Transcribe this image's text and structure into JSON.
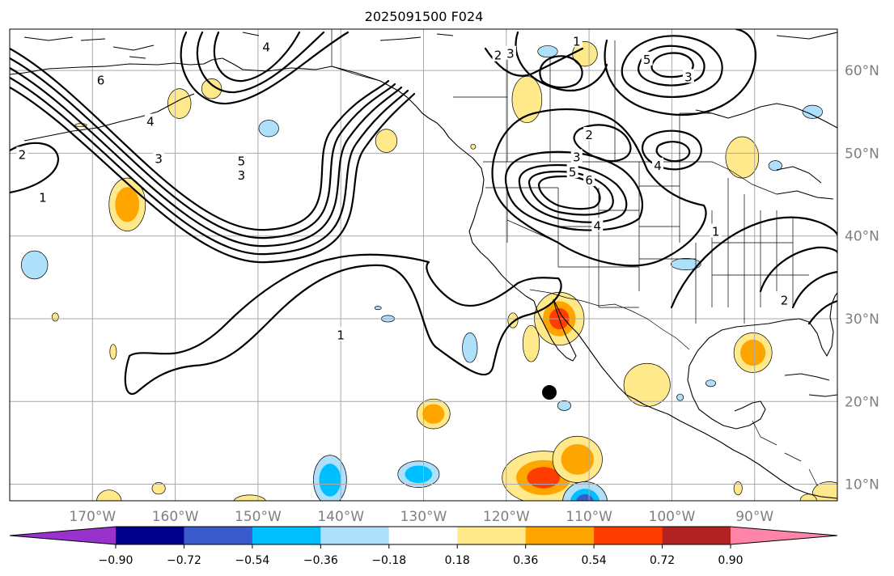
{
  "title": "2025091500 F024",
  "map": {
    "lon_range": [
      -180,
      -80
    ],
    "lat_range": [
      8,
      65
    ],
    "lon_ticks": [
      {
        "lon": -170,
        "label": "170°W"
      },
      {
        "lon": -160,
        "label": "160°W"
      },
      {
        "lon": -150,
        "label": "150°W"
      },
      {
        "lon": -140,
        "label": "140°W"
      },
      {
        "lon": -130,
        "label": "130°W"
      },
      {
        "lon": -120,
        "label": "120°W"
      },
      {
        "lon": -110,
        "label": "110°W"
      },
      {
        "lon": -100,
        "label": "100°W"
      },
      {
        "lon": -90,
        "label": "90°W"
      }
    ],
    "lat_ticks": [
      {
        "lat": 60,
        "label": "60°N"
      },
      {
        "lat": 50,
        "label": "50°N"
      },
      {
        "lat": 40,
        "label": "40°N"
      },
      {
        "lat": 30,
        "label": "30°N"
      },
      {
        "lat": 20,
        "label": "20°N"
      },
      {
        "lat": 10,
        "label": "10°N"
      }
    ],
    "marker": {
      "lon": -114.8,
      "lat": 21.1,
      "color": "#000000"
    },
    "contour_labels": [
      {
        "lon": -169,
        "lat": 58.8,
        "text": "6"
      },
      {
        "lon": -163,
        "lat": 53.8,
        "text": "4"
      },
      {
        "lon": -162,
        "lat": 49.3,
        "text": "3"
      },
      {
        "lon": -152,
        "lat": 49.0,
        "text": "5"
      },
      {
        "lon": -152,
        "lat": 47.3,
        "text": "3"
      },
      {
        "lon": -178.5,
        "lat": 49.8,
        "text": "2"
      },
      {
        "lon": -176,
        "lat": 44.6,
        "text": "1"
      },
      {
        "lon": -149,
        "lat": 62.8,
        "text": "4"
      },
      {
        "lon": -121,
        "lat": 61.8,
        "text": "2"
      },
      {
        "lon": -119.5,
        "lat": 62.0,
        "text": "3"
      },
      {
        "lon": -111.5,
        "lat": 63.5,
        "text": "1"
      },
      {
        "lon": -103,
        "lat": 61.3,
        "text": "5"
      },
      {
        "lon": -98,
        "lat": 59.2,
        "text": "3"
      },
      {
        "lon": -110,
        "lat": 52.2,
        "text": "2"
      },
      {
        "lon": -111.5,
        "lat": 49.5,
        "text": "3"
      },
      {
        "lon": -112,
        "lat": 47.7,
        "text": "5"
      },
      {
        "lon": -110,
        "lat": 46.7,
        "text": "6"
      },
      {
        "lon": -109,
        "lat": 41.2,
        "text": "4"
      },
      {
        "lon": -101.7,
        "lat": 48.5,
        "text": "4"
      },
      {
        "lon": -94.7,
        "lat": 40.5,
        "text": "1"
      },
      {
        "lon": -86.4,
        "lat": 32.2,
        "text": "2"
      },
      {
        "lon": -140,
        "lat": 28.0,
        "text": "1"
      }
    ]
  },
  "shading": {
    "colors": {
      "pos1": "#ffe98a",
      "pos2": "#ffa500",
      "pos3": "#ff3d00",
      "neg1": "#aee0fc",
      "neg2": "#00bfff",
      "neg3": "#3a5bcc"
    },
    "blobs": [
      {
        "lon": -165.8,
        "lat": 43.8,
        "rlon": 2.2,
        "rlat": 3.2,
        "levels": [
          "pos1",
          "pos2"
        ]
      },
      {
        "lon": -159.5,
        "lat": 56.0,
        "rlon": 1.4,
        "rlat": 1.8,
        "levels": [
          "pos1"
        ]
      },
      {
        "lon": -155.6,
        "lat": 57.8,
        "rlon": 1.2,
        "rlat": 1.2,
        "levels": [
          "pos1"
        ]
      },
      {
        "lon": -148.7,
        "lat": 53.0,
        "rlon": 1.2,
        "rlat": 1.0,
        "levels": [
          "neg1"
        ]
      },
      {
        "lon": -134.5,
        "lat": 51.5,
        "rlon": 1.3,
        "rlat": 1.4,
        "levels": [
          "pos1"
        ]
      },
      {
        "lon": -177.0,
        "lat": 36.5,
        "rlon": 1.6,
        "rlat": 1.7,
        "levels": [
          "neg1"
        ]
      },
      {
        "lon": -117.5,
        "lat": 56.5,
        "rlon": 1.8,
        "rlat": 2.8,
        "levels": [
          "pos1"
        ]
      },
      {
        "lon": -110.5,
        "lat": 62.0,
        "rlon": 1.5,
        "rlat": 1.5,
        "levels": [
          "pos1"
        ]
      },
      {
        "lon": -115.0,
        "lat": 62.3,
        "rlon": 1.2,
        "rlat": 0.7,
        "levels": [
          "neg1"
        ]
      },
      {
        "lon": -91.5,
        "lat": 49.5,
        "rlon": 2.0,
        "rlat": 2.5,
        "levels": [
          "pos1"
        ]
      },
      {
        "lon": -83.0,
        "lat": 55.0,
        "rlon": 1.2,
        "rlat": 0.8,
        "levels": [
          "neg1"
        ]
      },
      {
        "lon": -87.5,
        "lat": 48.5,
        "rlon": 0.8,
        "rlat": 0.6,
        "levels": [
          "neg1"
        ]
      },
      {
        "lon": -113.6,
        "lat": 30.0,
        "rlon": 3.0,
        "rlat": 3.2,
        "levels": [
          "pos1",
          "pos2",
          "pos3"
        ]
      },
      {
        "lon": -117.0,
        "lat": 27.0,
        "rlon": 1.0,
        "rlat": 2.2,
        "levels": [
          "pos1"
        ]
      },
      {
        "lon": -124.4,
        "lat": 26.5,
        "rlon": 0.9,
        "rlat": 1.8,
        "levels": [
          "neg1"
        ]
      },
      {
        "lon": -119.2,
        "lat": 29.8,
        "rlon": 0.6,
        "rlat": 0.9,
        "levels": [
          "pos1"
        ]
      },
      {
        "lon": -90.2,
        "lat": 25.9,
        "rlon": 2.3,
        "rlat": 2.4,
        "levels": [
          "pos1",
          "pos2"
        ]
      },
      {
        "lon": -103.0,
        "lat": 22.0,
        "rlon": 2.8,
        "rlat": 2.6,
        "levels": [
          "pos1"
        ]
      },
      {
        "lon": -98.3,
        "lat": 36.6,
        "rlon": 1.8,
        "rlat": 0.7,
        "levels": [
          "neg1"
        ]
      },
      {
        "lon": -128.8,
        "lat": 18.5,
        "rlon": 2.0,
        "rlat": 1.8,
        "levels": [
          "pos1",
          "pos2"
        ]
      },
      {
        "lon": -141.3,
        "lat": 10.5,
        "rlon": 2.0,
        "rlat": 3.0,
        "levels": [
          "neg1",
          "neg2"
        ]
      },
      {
        "lon": -130.6,
        "lat": 11.2,
        "rlon": 2.5,
        "rlat": 1.6,
        "levels": [
          "neg1",
          "neg2"
        ]
      },
      {
        "lon": -115.5,
        "lat": 10.8,
        "rlon": 5.0,
        "rlat": 3.2,
        "levels": [
          "pos1",
          "pos2",
          "pos3"
        ]
      },
      {
        "lon": -111.4,
        "lat": 13.0,
        "rlon": 3.0,
        "rlat": 2.8,
        "levels": [
          "pos1",
          "pos2"
        ]
      },
      {
        "lon": -110.5,
        "lat": 7.8,
        "rlon": 2.7,
        "rlat": 2.5,
        "levels": [
          "neg1",
          "neg2",
          "neg3"
        ]
      },
      {
        "lon": -162.0,
        "lat": 9.5,
        "rlon": 0.8,
        "rlat": 0.7,
        "levels": [
          "pos1"
        ]
      },
      {
        "lon": -168.0,
        "lat": 7.9,
        "rlon": 1.5,
        "rlat": 1.4,
        "levels": [
          "pos1"
        ]
      },
      {
        "lon": -151.0,
        "lat": 7.8,
        "rlon": 2.0,
        "rlat": 0.9,
        "levels": [
          "pos1"
        ]
      },
      {
        "lon": -174.5,
        "lat": 30.2,
        "rlon": 0.4,
        "rlat": 0.5,
        "levels": [
          "pos1"
        ]
      },
      {
        "lon": -167.5,
        "lat": 26.0,
        "rlon": 0.4,
        "rlat": 0.9,
        "levels": [
          "pos1"
        ]
      },
      {
        "lon": -134.3,
        "lat": 30.0,
        "rlon": 0.8,
        "rlat": 0.4,
        "levels": [
          "neg1"
        ]
      },
      {
        "lon": -113.0,
        "lat": 19.5,
        "rlon": 0.8,
        "rlat": 0.6,
        "levels": [
          "neg1"
        ]
      },
      {
        "lon": -81.0,
        "lat": 8.9,
        "rlon": 2.0,
        "rlat": 1.4,
        "levels": [
          "pos1"
        ]
      },
      {
        "lon": -83.5,
        "lat": 8.0,
        "rlon": 1.0,
        "rlat": 0.8,
        "levels": [
          "pos1"
        ]
      },
      {
        "lon": -92.0,
        "lat": 9.5,
        "rlon": 0.5,
        "rlat": 0.8,
        "levels": [
          "pos1"
        ]
      },
      {
        "lon": -95.3,
        "lat": 22.2,
        "rlon": 0.6,
        "rlat": 0.4,
        "levels": [
          "neg1"
        ]
      },
      {
        "lon": -99.0,
        "lat": 20.5,
        "rlon": 0.4,
        "rlat": 0.4,
        "levels": [
          "neg1"
        ]
      },
      {
        "lon": -135.5,
        "lat": 31.3,
        "rlon": 0.4,
        "rlat": 0.2,
        "levels": [
          "neg1"
        ]
      },
      {
        "lon": -124.0,
        "lat": 50.8,
        "rlon": 0.3,
        "rlat": 0.3,
        "levels": [
          "pos1"
        ]
      },
      {
        "lon": -171.4,
        "lat": 53.4,
        "rlon": 0.7,
        "rlat": 0.2,
        "levels": [
          "pos1"
        ]
      }
    ]
  },
  "colorbar": {
    "colors": [
      "#9932cc",
      "#00008b",
      "#3a5bcc",
      "#00bfff",
      "#aee0fc",
      "#ffffff",
      "#ffe98a",
      "#ffa500",
      "#ff3d00",
      "#b22222",
      "#ff85a8"
    ],
    "tick_labels": [
      "−0.90",
      "−0.72",
      "−0.54",
      "−0.36",
      "−0.18",
      "0.18",
      "0.36",
      "0.54",
      "0.72",
      "0.90"
    ]
  }
}
